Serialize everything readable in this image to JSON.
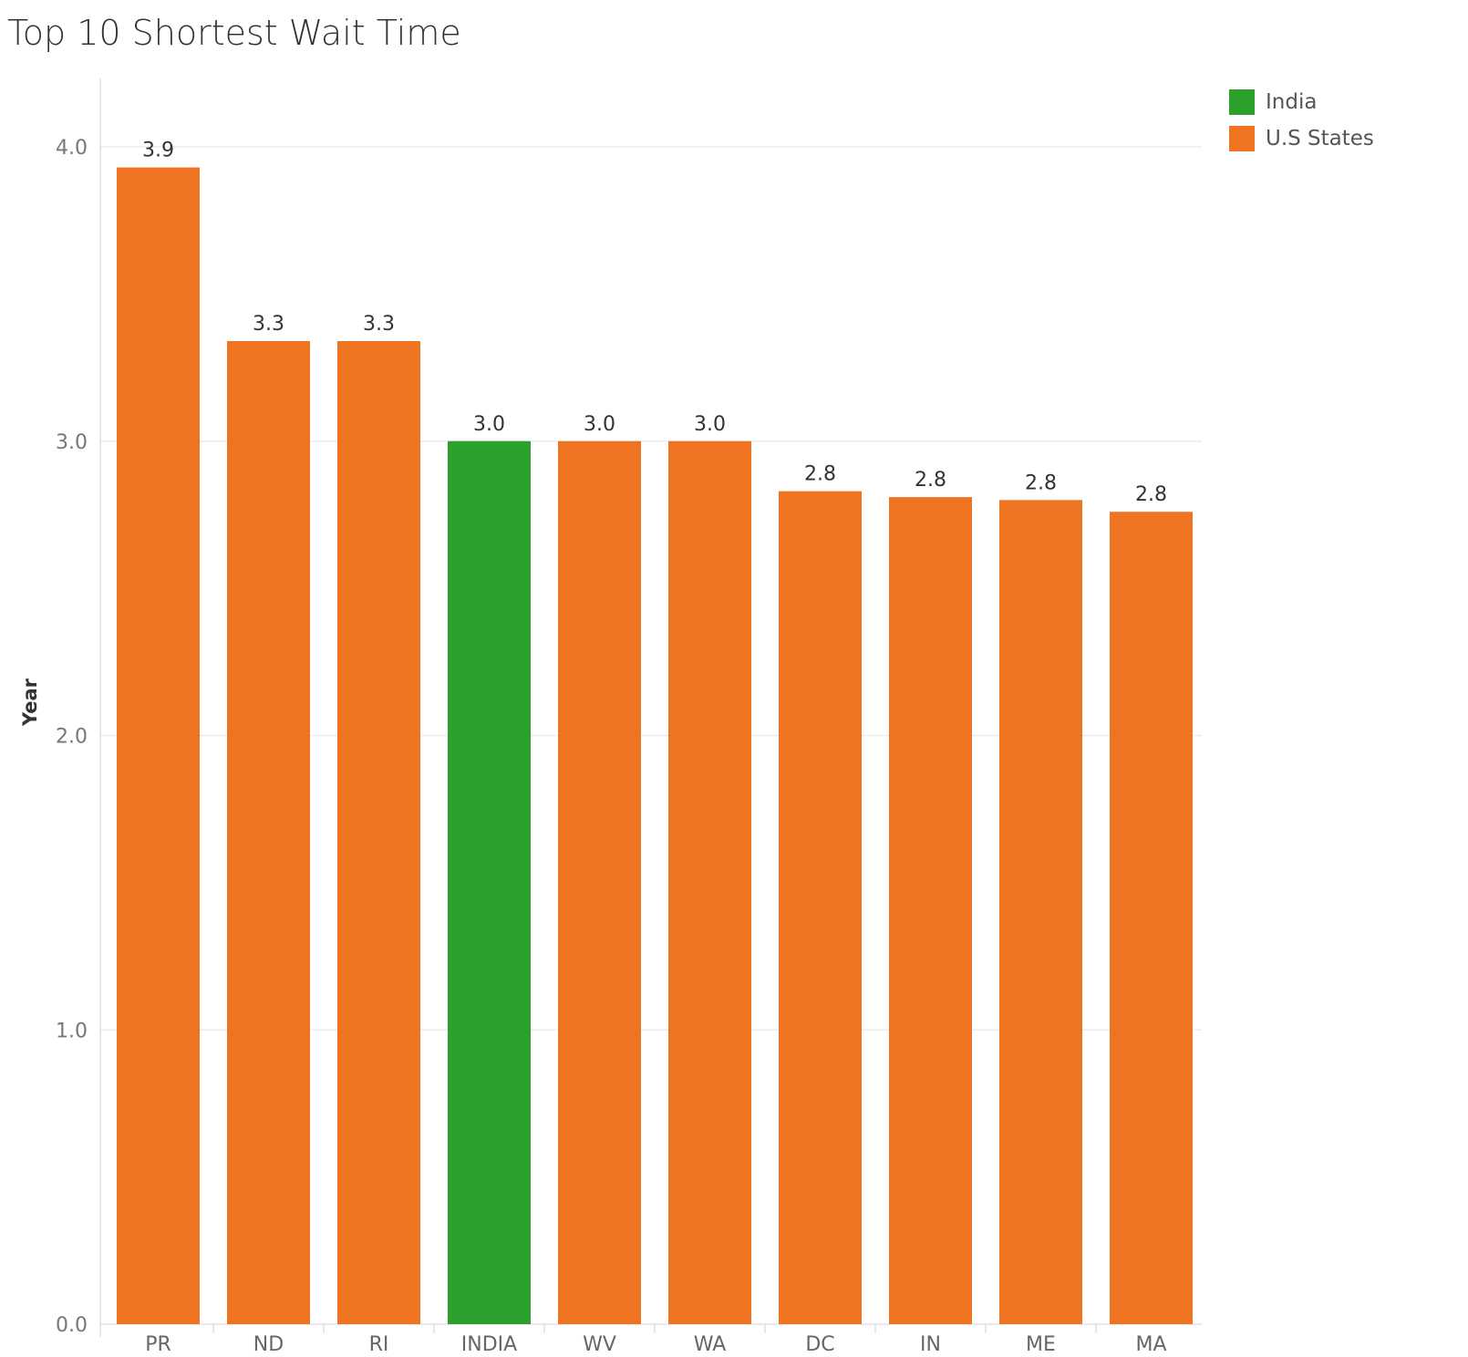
{
  "chart_data": {
    "type": "bar",
    "title": "Top 10 Shortest Wait Time",
    "ylabel": "Year",
    "xlabel": "",
    "ylim": [
      0,
      4.2
    ],
    "yticks": [
      0,
      1,
      2,
      3,
      4
    ],
    "ytick_labels": [
      "0.0",
      "1.0",
      "2.0",
      "3.0",
      "4.0"
    ],
    "grid": "horizontal",
    "legend_position": "top-right",
    "categories": [
      "PR",
      "ND",
      "RI",
      "INDIA",
      "WV",
      "WA",
      "DC",
      "IN",
      "ME",
      "MA"
    ],
    "values": [
      3.93,
      3.34,
      3.34,
      3.0,
      3.0,
      3.0,
      2.83,
      2.81,
      2.8,
      2.76
    ],
    "data_labels": [
      "3.9",
      "3.3",
      "3.3",
      "3.0",
      "3.0",
      "3.0",
      "2.8",
      "2.8",
      "2.8",
      "2.8"
    ],
    "groups": [
      "U.S States",
      "U.S States",
      "U.S States",
      "India",
      "U.S States",
      "U.S States",
      "U.S States",
      "U.S States",
      "U.S States",
      "U.S States"
    ],
    "legend": [
      {
        "name": "India",
        "color": "#2ca02c"
      },
      {
        "name": "U.S States",
        "color": "#ee7422"
      }
    ]
  }
}
